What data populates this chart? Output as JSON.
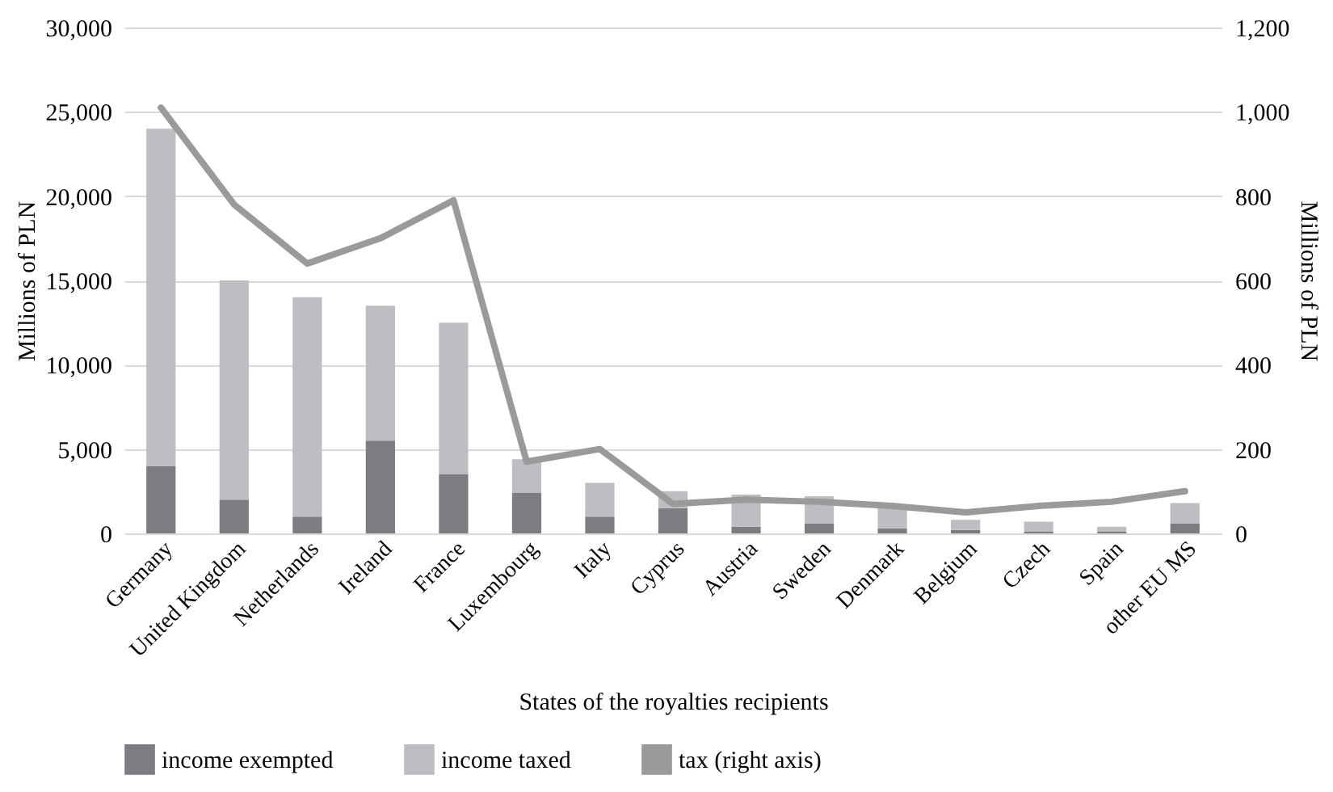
{
  "chart_data": {
    "type": "bar",
    "stacked": true,
    "xlabel": "States of the royalties recipients",
    "ylabel": "Millions of PLN",
    "y2label": "Millions of PLN",
    "categories": [
      "Germany",
      "United Kingdom",
      "Netherlands",
      "Ireland",
      "France",
      "Luxembourg",
      "Italy",
      "Cyprus",
      "Austria",
      "Sweden",
      "Denmark",
      "Belgium",
      "Czech",
      "Spain",
      "other EU MS"
    ],
    "series": [
      {
        "name": "income exempted",
        "type": "bar",
        "color": "#7c7d80",
        "values": [
          4000,
          2000,
          1000,
          5500,
          3500,
          2400,
          1000,
          1500,
          400,
          600,
          300,
          200,
          100,
          100,
          600
        ]
      },
      {
        "name": "income taxed",
        "type": "bar",
        "color": "#bdbec1",
        "values": [
          20000,
          13000,
          13000,
          8000,
          9000,
          2000,
          2000,
          1000,
          1900,
          1600,
          1300,
          600,
          600,
          300,
          1200
        ]
      },
      {
        "name": "tax (right axis)",
        "type": "line",
        "axis": "y2",
        "color": "#999a9c",
        "values": [
          1010,
          780,
          640,
          700,
          790,
          170,
          200,
          70,
          80,
          75,
          65,
          50,
          65,
          75,
          100
        ]
      }
    ],
    "ylim": [
      0,
      30000
    ],
    "yticks": [
      0,
      {
        "value": 5000,
        "label": "5,000"
      },
      {
        "value": 10000,
        "label": "10,000"
      },
      {
        "value": 15000,
        "label": "15,000"
      },
      {
        "value": 20000,
        "label": "20,000"
      },
      {
        "value": 25000,
        "label": "25,000"
      },
      {
        "value": 30000,
        "label": "30,000"
      }
    ],
    "y2lim": [
      0,
      1200
    ],
    "y2ticks": [
      0,
      200,
      400,
      600,
      800,
      {
        "value": 1000,
        "label": "1,000"
      },
      {
        "value": 1200,
        "label": "1,200"
      }
    ],
    "grid": "y",
    "legend": "bottom"
  }
}
